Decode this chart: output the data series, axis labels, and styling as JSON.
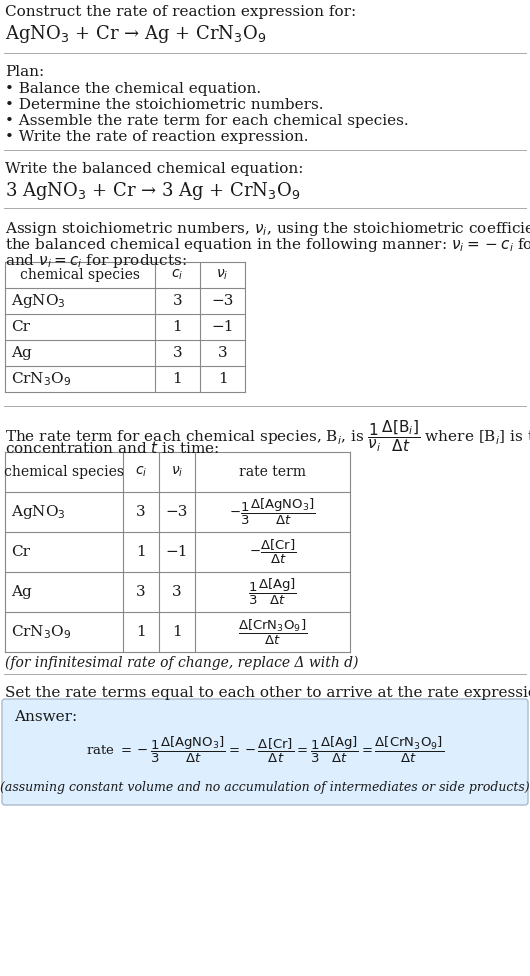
{
  "bg_color": "#ffffff",
  "text_color": "#1a1a1a",
  "line_color": "#aaaaaa",
  "answer_box_color": "#ddeeff",
  "answer_box_edge": "#aabbcc",
  "font_serif": "DejaVu Serif",
  "font_sans": "DejaVu Sans",
  "sections": {
    "s1_title": "Construct the rate of reaction expression for:",
    "s1_reaction": "AgNO$_3$ + Cr → Ag + CrN$_3$O$_9$",
    "plan_title": "Plan:",
    "plan_items": [
      "• Balance the chemical equation.",
      "• Determine the stoichiometric numbers.",
      "• Assemble the rate term for each chemical species.",
      "• Write the rate of reaction expression."
    ],
    "s3_title": "Write the balanced chemical equation:",
    "s3_eq": "3 AgNO$_3$ + Cr → 3 Ag + CrN$_3$O$_9$",
    "s4_line1": "Assign stoichiometric numbers, $\\nu_i$, using the stoichiometric coefficients, $c_i$, from",
    "s4_line2": "the balanced chemical equation in the following manner: $\\nu_i = -c_i$ for reactants",
    "s4_line3": "and $\\nu_i = c_i$ for products:",
    "t1_headers": [
      "chemical species",
      "$c_i$",
      "$\\nu_i$"
    ],
    "t1_rows": [
      [
        "AgNO$_3$",
        "3",
        "−3"
      ],
      [
        "Cr",
        "1",
        "−1"
      ],
      [
        "Ag",
        "3",
        "3"
      ],
      [
        "CrN$_3$O$_9$",
        "1",
        "1"
      ]
    ],
    "s5_line1": "The rate term for each chemical species, B$_i$, is $\\dfrac{1}{\\nu_i}\\dfrac{\\Delta[\\mathrm{B}_i]}{\\Delta t}$ where [B$_i$] is the amount",
    "s5_line2": "concentration and $t$ is time:",
    "t2_headers": [
      "chemical species",
      "$c_i$",
      "$\\nu_i$",
      "rate term"
    ],
    "t2_rows": [
      [
        "AgNO$_3$",
        "3",
        "−3",
        "$-\\dfrac{1}{3}\\dfrac{\\Delta[\\mathrm{AgNO_3}]}{\\Delta t}$"
      ],
      [
        "Cr",
        "1",
        "−1",
        "$-\\dfrac{\\Delta[\\mathrm{Cr}]}{\\Delta t}$"
      ],
      [
        "Ag",
        "3",
        "3",
        "$\\dfrac{1}{3}\\dfrac{\\Delta[\\mathrm{Ag}]}{\\Delta t}$"
      ],
      [
        "CrN$_3$O$_9$",
        "1",
        "1",
        "$\\dfrac{\\Delta[\\mathrm{CrN_3O_9}]}{\\Delta t}$"
      ]
    ],
    "s5_note": "(for infinitesimal rate of change, replace Δ with d)",
    "s6_text": "Set the rate terms equal to each other to arrive at the rate expression:",
    "ans_label": "Answer:",
    "ans_eq": "rate $= -\\dfrac{1}{3}\\dfrac{\\Delta[\\mathrm{AgNO_3}]}{\\Delta t} = -\\dfrac{\\Delta[\\mathrm{Cr}]}{\\Delta t} = \\dfrac{1}{3}\\dfrac{\\Delta[\\mathrm{Ag}]}{\\Delta t} = \\dfrac{\\Delta[\\mathrm{CrN_3O_9}]}{\\Delta t}$",
    "ans_note": "(assuming constant volume and no accumulation of intermediates or side products)"
  }
}
